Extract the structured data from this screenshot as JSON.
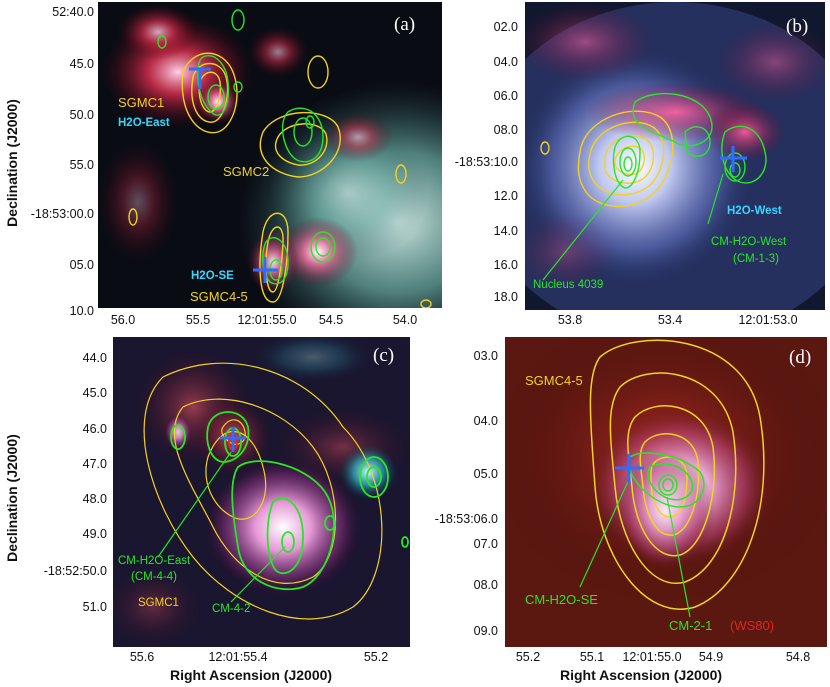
{
  "axis_titles": {
    "declination": "Declination (J2000)",
    "right_ascension": "Right Ascension (J2000)"
  },
  "panel_a": {
    "label": "(a)",
    "y_ticks": [
      "52:40.0",
      "45.0",
      "50.0",
      "55.0",
      "-18:53:00.0",
      "05.0",
      "10.0"
    ],
    "x_ticks": [
      "56.0",
      "55.5",
      "12:01:55.0",
      "54.5",
      "54.0"
    ],
    "annotations": {
      "sgmc1": "SGMC1",
      "h2o_east": "H2O-East",
      "sgmc2": "SGMC2",
      "h2o_se": "H2O-SE",
      "sgmc45": "SGMC4-5"
    }
  },
  "panel_b": {
    "label": "(b)",
    "y_ticks": [
      "02.0",
      "04.0",
      "06.0",
      "08.0",
      "-18:53:10.0",
      "12.0",
      "14.0",
      "16.0",
      "18.0"
    ],
    "x_ticks": [
      "53.8",
      "53.4",
      "12:01:53.0"
    ],
    "annotations": {
      "h2o_west": "H2O-West",
      "cm_h2o_west": "CM-H2O-West",
      "cm_1_3": "(CM-1-3)",
      "nucleus": "Nucleus 4039"
    }
  },
  "panel_c": {
    "label": "(c)",
    "y_ticks": [
      "44.0",
      "45.0",
      "46.0",
      "47.0",
      "48.0",
      "49.0",
      "-18:52:50.0",
      "51.0"
    ],
    "x_ticks": [
      "55.6",
      "12:01:55.4",
      "55.2"
    ],
    "annotations": {
      "cm_h2o_east": "CM-H2O-East",
      "cm_4_4": "(CM-4-4)",
      "sgmc1": "SGMC1",
      "cm_4_2": "CM-4-2"
    }
  },
  "panel_d": {
    "label": "(d)",
    "y_ticks": [
      "03.0",
      "04.0",
      "05.0",
      "-18:53:06.0",
      "07.0",
      "08.0",
      "09.0"
    ],
    "x_ticks": [
      "55.2",
      "55.1",
      "12:01:55.0",
      "54.9",
      "54.8"
    ],
    "annotations": {
      "sgmc45": "SGMC4-5",
      "cm_h2o_se": "CM-H2O-SE",
      "cm_2_1": "CM-2-1",
      "ws80": "(WS80)"
    }
  },
  "colors": {
    "contour_yellow": "#f2d21f",
    "contour_green": "#27e627",
    "maser_cross": "#2f6cff",
    "label_cyan": "#35d6ff"
  }
}
